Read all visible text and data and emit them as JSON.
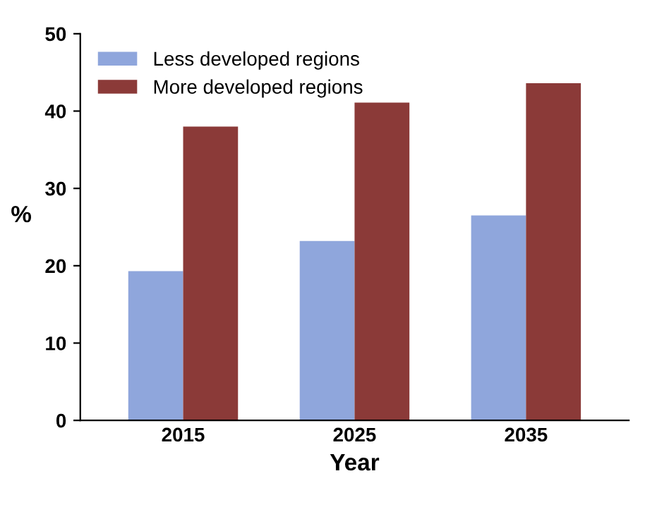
{
  "chart_data": {
    "type": "bar",
    "xlabel": "Year",
    "ylabel": "%",
    "categories": [
      "2015",
      "2025",
      "2035"
    ],
    "series": [
      {
        "name": "Less developed regions",
        "color": "#8fa6dc",
        "values": [
          19.3,
          23.2,
          26.5
        ]
      },
      {
        "name": "More developed regions",
        "color": "#8b3a38",
        "values": [
          38.0,
          41.1,
          43.6
        ]
      }
    ],
    "ylim": [
      0,
      50
    ],
    "yticks": [
      0,
      10,
      20,
      30,
      40,
      50
    ],
    "grid": false,
    "legend": "top left"
  }
}
